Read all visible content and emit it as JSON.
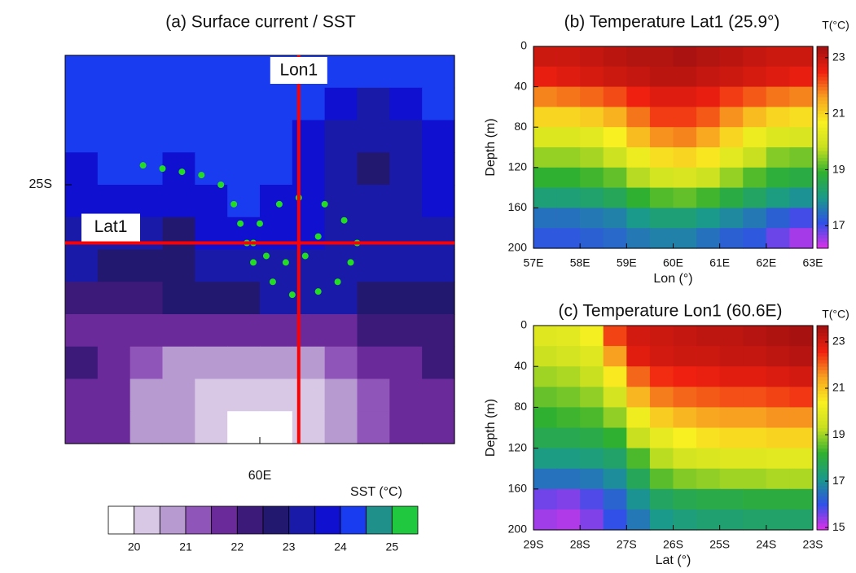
{
  "chart_data": [
    {
      "type": "contour_map",
      "title": "(a) Surface current / SST",
      "x": [
        57.25,
        57.75,
        58.25,
        58.75,
        59.25,
        59.75,
        60.25,
        60.75,
        61.25,
        61.75,
        62.25,
        62.75
      ],
      "y": [
        -23.25,
        -23.75,
        -24.25,
        -24.75,
        -25.25,
        -25.75,
        -26.25,
        -26.75,
        -27.25,
        -27.75,
        -28.25,
        -28.75
      ],
      "values": [
        [
          24.3,
          24.3,
          24.4,
          24.4,
          24.3,
          24.3,
          24.3,
          24.3,
          24.2,
          24.2,
          24.3,
          24.3
        ],
        [
          24.1,
          24.2,
          24.3,
          24.3,
          24.2,
          24.2,
          24.2,
          24.1,
          23.8,
          23.4,
          23.5,
          24.0
        ],
        [
          24.0,
          24.0,
          24.1,
          24.2,
          24.1,
          24.0,
          24.1,
          23.8,
          23.3,
          23.0,
          23.2,
          23.7
        ],
        [
          23.9,
          24.0,
          24.0,
          23.9,
          24.0,
          24.0,
          24.0,
          23.7,
          23.2,
          22.9,
          23.1,
          23.6
        ],
        [
          23.8,
          23.7,
          23.8,
          23.5,
          23.8,
          24.0,
          23.9,
          23.7,
          23.3,
          23.1,
          23.2,
          23.5
        ],
        [
          23.4,
          23.3,
          23.2,
          22.9,
          23.5,
          23.8,
          23.7,
          23.6,
          23.4,
          23.3,
          23.3,
          23.4
        ],
        [
          23.0,
          22.9,
          22.9,
          22.8,
          23.0,
          23.3,
          23.3,
          23.4,
          23.4,
          23.3,
          23.2,
          23.2
        ],
        [
          22.2,
          22.0,
          22.3,
          22.6,
          22.8,
          22.9,
          23.0,
          23.0,
          23.0,
          22.9,
          22.8,
          22.8
        ],
        [
          21.9,
          21.8,
          21.7,
          21.8,
          21.9,
          21.9,
          21.7,
          21.6,
          21.8,
          22.0,
          22.2,
          22.3
        ],
        [
          22.0,
          21.7,
          21.1,
          20.8,
          20.7,
          20.6,
          20.5,
          20.7,
          21.2,
          21.5,
          21.8,
          22.0
        ],
        [
          21.9,
          21.6,
          20.9,
          20.5,
          20.3,
          20.2,
          20.2,
          20.3,
          20.8,
          21.3,
          21.7,
          21.9
        ],
        [
          21.9,
          21.5,
          20.9,
          20.5,
          20.2,
          19.9,
          19.8,
          20.0,
          20.6,
          21.2,
          21.7,
          21.9
        ]
      ],
      "xlim": [
        57,
        63
      ],
      "ylim": [
        -29,
        -23
      ],
      "xticks": [
        {
          "value": 60,
          "label": "60E"
        }
      ],
      "yticks": [
        {
          "value": -25,
          "label": "25S"
        }
      ],
      "sections": [
        {
          "name": "Lon1",
          "lon": 60.6,
          "color": "#ff0000"
        },
        {
          "name": "Lat1",
          "lat": -25.9,
          "color": "#ff0000"
        }
      ],
      "eddy_track": {
        "color": "#22dd22",
        "lon": [
          58.2,
          58.5,
          58.8,
          59.1,
          59.4,
          59.6,
          59.7,
          59.8,
          59.9,
          60.2,
          60.5,
          60.9,
          61.2,
          61.4,
          61.5,
          61.3,
          61.0,
          60.6,
          60.3,
          60.0,
          59.9,
          60.1,
          60.4,
          60.7,
          60.9
        ],
        "lat": [
          -24.7,
          -24.75,
          -24.8,
          -24.85,
          -25.0,
          -25.3,
          -25.6,
          -25.9,
          -26.2,
          -26.5,
          -26.7,
          -26.65,
          -26.5,
          -26.2,
          -25.9,
          -25.55,
          -25.3,
          -25.2,
          -25.3,
          -25.6,
          -25.9,
          -26.1,
          -26.2,
          -26.1,
          -25.8
        ]
      },
      "colorbar": {
        "title": "SST (°C)",
        "levels": [
          20,
          20.5,
          21,
          21.5,
          22,
          22.5,
          23,
          23.5,
          24,
          24.5,
          25
        ],
        "colors": [
          "#ffffff",
          "#d8c8e6",
          "#b79ad0",
          "#9055b8",
          "#6a2a99",
          "#3c1a7a",
          "#231870",
          "#1a1aa8",
          "#1010d0",
          "#1a3cf0",
          "#20908a",
          "#20c840"
        ],
        "ticks": [
          20,
          21,
          22,
          23,
          24,
          25
        ]
      }
    },
    {
      "type": "heatmap",
      "title": "(b) Temperature Lat1 (25.9°)",
      "x": [
        57.25,
        57.75,
        58.25,
        58.75,
        59.25,
        59.75,
        60.25,
        60.75,
        61.25,
        61.75,
        62.25,
        62.75
      ],
      "y": [
        10,
        30,
        50,
        70,
        90,
        110,
        130,
        150,
        170,
        190
      ],
      "values": [
        [
          22.9,
          22.9,
          23.0,
          23.1,
          23.2,
          23.2,
          23.3,
          23.2,
          23.1,
          23.0,
          22.9,
          22.9
        ],
        [
          22.6,
          22.7,
          22.8,
          22.9,
          23.0,
          23.1,
          23.1,
          23.0,
          22.9,
          22.8,
          22.7,
          22.6
        ],
        [
          21.8,
          21.9,
          22.0,
          22.2,
          22.5,
          22.7,
          22.7,
          22.6,
          22.3,
          22.1,
          21.9,
          21.8
        ],
        [
          21.0,
          21.0,
          21.1,
          21.4,
          21.9,
          22.3,
          22.3,
          22.1,
          21.7,
          21.3,
          21.0,
          20.9
        ],
        [
          20.2,
          20.2,
          20.3,
          20.7,
          21.3,
          21.7,
          21.8,
          21.5,
          21.0,
          20.5,
          20.2,
          20.1
        ],
        [
          19.5,
          19.5,
          19.6,
          19.9,
          20.5,
          20.9,
          21.0,
          20.8,
          20.3,
          19.8,
          19.4,
          19.3
        ],
        [
          18.9,
          18.9,
          19.0,
          19.2,
          19.7,
          20.0,
          20.1,
          19.9,
          19.5,
          19.1,
          18.8,
          18.7
        ],
        [
          18.2,
          18.2,
          18.3,
          18.5,
          18.9,
          19.1,
          19.2,
          19.0,
          18.7,
          18.4,
          18.1,
          17.9
        ],
        [
          17.5,
          17.5,
          17.6,
          17.7,
          18.0,
          18.2,
          18.2,
          18.0,
          17.8,
          17.6,
          17.3,
          17.0
        ],
        [
          17.2,
          17.2,
          17.3,
          17.4,
          17.6,
          17.7,
          17.7,
          17.5,
          17.3,
          17.2,
          16.8,
          16.5
        ]
      ],
      "xlim": [
        57,
        63
      ],
      "ylim": [
        0,
        200
      ],
      "y_inverted": true,
      "xticks": [
        {
          "value": 57,
          "label": "57E"
        },
        {
          "value": 58,
          "label": "58E"
        },
        {
          "value": 59,
          "label": "59E"
        },
        {
          "value": 60,
          "label": "60E"
        },
        {
          "value": 61,
          "label": "61E"
        },
        {
          "value": 62,
          "label": "62E"
        },
        {
          "value": 63,
          "label": "63E"
        }
      ],
      "yticks": [
        0,
        40,
        80,
        120,
        160,
        200
      ],
      "xlabel": "Lon (°)",
      "ylabel": "Depth (m)",
      "colorbar": {
        "title": "T(°C)",
        "clim": [
          16.2,
          23.4
        ],
        "ticks": [
          17,
          19,
          21,
          23
        ],
        "colormap": [
          "#e030e8",
          "#3050e8",
          "#1a9a8a",
          "#30b030",
          "#c8e020",
          "#f8f020",
          "#f8a020",
          "#f02010",
          "#a01010"
        ]
      }
    },
    {
      "type": "heatmap",
      "title": "(c) Temperature Lon1 (60.6E)",
      "x": [
        -28.75,
        -28.25,
        -27.75,
        -27.25,
        -26.75,
        -26.25,
        -25.75,
        -25.25,
        -24.75,
        -24.25,
        -23.75,
        -23.25
      ],
      "y": [
        10,
        30,
        50,
        70,
        90,
        110,
        130,
        150,
        170,
        190
      ],
      "values": [
        [
          19.8,
          19.9,
          20.3,
          22.3,
          23.0,
          23.1,
          23.2,
          23.3,
          23.3,
          23.4,
          23.5,
          23.6
        ],
        [
          19.4,
          19.6,
          19.8,
          21.5,
          22.8,
          23.0,
          23.1,
          23.1,
          23.2,
          23.2,
          23.3,
          23.4
        ],
        [
          19.0,
          19.1,
          19.3,
          20.5,
          22.0,
          22.5,
          22.6,
          22.7,
          22.8,
          22.8,
          22.9,
          23.0
        ],
        [
          18.6,
          18.7,
          18.9,
          19.6,
          21.2,
          21.8,
          22.0,
          22.1,
          22.2,
          22.2,
          22.3,
          22.4
        ],
        [
          18.2,
          18.3,
          18.4,
          18.9,
          20.2,
          20.9,
          21.2,
          21.4,
          21.5,
          21.5,
          21.6,
          21.6
        ],
        [
          17.8,
          17.8,
          17.9,
          18.2,
          19.3,
          20.0,
          20.4,
          20.6,
          20.7,
          20.7,
          20.8,
          20.8
        ],
        [
          17.2,
          17.2,
          17.3,
          17.5,
          18.4,
          19.2,
          19.6,
          19.7,
          19.8,
          19.8,
          19.9,
          19.9
        ],
        [
          16.5,
          16.5,
          16.6,
          16.9,
          17.7,
          18.5,
          18.8,
          18.9,
          19.0,
          19.0,
          19.1,
          19.1
        ],
        [
          15.6,
          15.5,
          15.8,
          16.3,
          17.0,
          17.6,
          17.8,
          17.9,
          17.9,
          18.0,
          18.0,
          18.0
        ],
        [
          15.3,
          15.2,
          15.5,
          16.0,
          16.6,
          17.1,
          17.3,
          17.4,
          17.4,
          17.5,
          17.5,
          17.5
        ]
      ],
      "xlim": [
        -29,
        -23
      ],
      "ylim": [
        0,
        200
      ],
      "y_inverted": true,
      "xticks": [
        {
          "value": -29,
          "label": "29S"
        },
        {
          "value": -28,
          "label": "28S"
        },
        {
          "value": -27,
          "label": "27S"
        },
        {
          "value": -26,
          "label": "26S"
        },
        {
          "value": -25,
          "label": "25S"
        },
        {
          "value": -24,
          "label": "24S"
        },
        {
          "value": -23,
          "label": "23S"
        }
      ],
      "yticks": [
        0,
        40,
        80,
        120,
        160,
        200
      ],
      "xlabel": "Lat (°)",
      "ylabel": "Depth (m)",
      "colorbar": {
        "title": "T(°C)",
        "clim": [
          14.9,
          23.7
        ],
        "ticks": [
          15,
          17,
          19,
          21,
          23
        ],
        "colormap": [
          "#e030e8",
          "#3050e8",
          "#1a9a8a",
          "#30b030",
          "#c8e020",
          "#f8f020",
          "#f8a020",
          "#f02010",
          "#a01010"
        ]
      }
    }
  ]
}
